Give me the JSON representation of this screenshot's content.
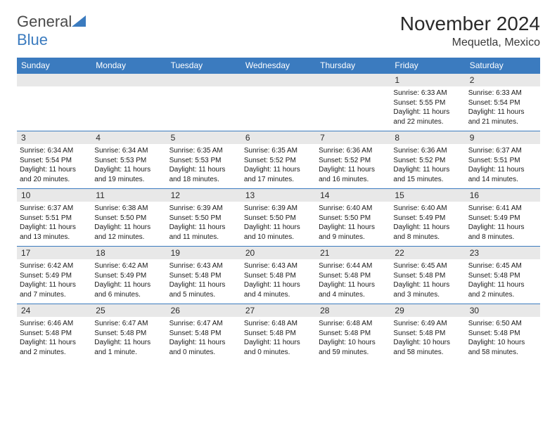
{
  "logo": {
    "first": "General",
    "second": "Blue"
  },
  "header": {
    "month": "November 2024",
    "location": "Mequetla, Mexico"
  },
  "colors": {
    "accent": "#3b7bbf",
    "header_bg": "#3b7bbf",
    "daynum_bg": "#e8e8e8",
    "text": "#1a1a1a",
    "border": "#3b7bbf"
  },
  "weekday_labels": [
    "Sunday",
    "Monday",
    "Tuesday",
    "Wednesday",
    "Thursday",
    "Friday",
    "Saturday"
  ],
  "weeks": [
    [
      null,
      null,
      null,
      null,
      null,
      {
        "n": "1",
        "sr": "Sunrise: 6:33 AM",
        "ss": "Sunset: 5:55 PM",
        "dl": "Daylight: 11 hours and 22 minutes."
      },
      {
        "n": "2",
        "sr": "Sunrise: 6:33 AM",
        "ss": "Sunset: 5:54 PM",
        "dl": "Daylight: 11 hours and 21 minutes."
      }
    ],
    [
      {
        "n": "3",
        "sr": "Sunrise: 6:34 AM",
        "ss": "Sunset: 5:54 PM",
        "dl": "Daylight: 11 hours and 20 minutes."
      },
      {
        "n": "4",
        "sr": "Sunrise: 6:34 AM",
        "ss": "Sunset: 5:53 PM",
        "dl": "Daylight: 11 hours and 19 minutes."
      },
      {
        "n": "5",
        "sr": "Sunrise: 6:35 AM",
        "ss": "Sunset: 5:53 PM",
        "dl": "Daylight: 11 hours and 18 minutes."
      },
      {
        "n": "6",
        "sr": "Sunrise: 6:35 AM",
        "ss": "Sunset: 5:52 PM",
        "dl": "Daylight: 11 hours and 17 minutes."
      },
      {
        "n": "7",
        "sr": "Sunrise: 6:36 AM",
        "ss": "Sunset: 5:52 PM",
        "dl": "Daylight: 11 hours and 16 minutes."
      },
      {
        "n": "8",
        "sr": "Sunrise: 6:36 AM",
        "ss": "Sunset: 5:52 PM",
        "dl": "Daylight: 11 hours and 15 minutes."
      },
      {
        "n": "9",
        "sr": "Sunrise: 6:37 AM",
        "ss": "Sunset: 5:51 PM",
        "dl": "Daylight: 11 hours and 14 minutes."
      }
    ],
    [
      {
        "n": "10",
        "sr": "Sunrise: 6:37 AM",
        "ss": "Sunset: 5:51 PM",
        "dl": "Daylight: 11 hours and 13 minutes."
      },
      {
        "n": "11",
        "sr": "Sunrise: 6:38 AM",
        "ss": "Sunset: 5:50 PM",
        "dl": "Daylight: 11 hours and 12 minutes."
      },
      {
        "n": "12",
        "sr": "Sunrise: 6:39 AM",
        "ss": "Sunset: 5:50 PM",
        "dl": "Daylight: 11 hours and 11 minutes."
      },
      {
        "n": "13",
        "sr": "Sunrise: 6:39 AM",
        "ss": "Sunset: 5:50 PM",
        "dl": "Daylight: 11 hours and 10 minutes."
      },
      {
        "n": "14",
        "sr": "Sunrise: 6:40 AM",
        "ss": "Sunset: 5:50 PM",
        "dl": "Daylight: 11 hours and 9 minutes."
      },
      {
        "n": "15",
        "sr": "Sunrise: 6:40 AM",
        "ss": "Sunset: 5:49 PM",
        "dl": "Daylight: 11 hours and 8 minutes."
      },
      {
        "n": "16",
        "sr": "Sunrise: 6:41 AM",
        "ss": "Sunset: 5:49 PM",
        "dl": "Daylight: 11 hours and 8 minutes."
      }
    ],
    [
      {
        "n": "17",
        "sr": "Sunrise: 6:42 AM",
        "ss": "Sunset: 5:49 PM",
        "dl": "Daylight: 11 hours and 7 minutes."
      },
      {
        "n": "18",
        "sr": "Sunrise: 6:42 AM",
        "ss": "Sunset: 5:49 PM",
        "dl": "Daylight: 11 hours and 6 minutes."
      },
      {
        "n": "19",
        "sr": "Sunrise: 6:43 AM",
        "ss": "Sunset: 5:48 PM",
        "dl": "Daylight: 11 hours and 5 minutes."
      },
      {
        "n": "20",
        "sr": "Sunrise: 6:43 AM",
        "ss": "Sunset: 5:48 PM",
        "dl": "Daylight: 11 hours and 4 minutes."
      },
      {
        "n": "21",
        "sr": "Sunrise: 6:44 AM",
        "ss": "Sunset: 5:48 PM",
        "dl": "Daylight: 11 hours and 4 minutes."
      },
      {
        "n": "22",
        "sr": "Sunrise: 6:45 AM",
        "ss": "Sunset: 5:48 PM",
        "dl": "Daylight: 11 hours and 3 minutes."
      },
      {
        "n": "23",
        "sr": "Sunrise: 6:45 AM",
        "ss": "Sunset: 5:48 PM",
        "dl": "Daylight: 11 hours and 2 minutes."
      }
    ],
    [
      {
        "n": "24",
        "sr": "Sunrise: 6:46 AM",
        "ss": "Sunset: 5:48 PM",
        "dl": "Daylight: 11 hours and 2 minutes."
      },
      {
        "n": "25",
        "sr": "Sunrise: 6:47 AM",
        "ss": "Sunset: 5:48 PM",
        "dl": "Daylight: 11 hours and 1 minute."
      },
      {
        "n": "26",
        "sr": "Sunrise: 6:47 AM",
        "ss": "Sunset: 5:48 PM",
        "dl": "Daylight: 11 hours and 0 minutes."
      },
      {
        "n": "27",
        "sr": "Sunrise: 6:48 AM",
        "ss": "Sunset: 5:48 PM",
        "dl": "Daylight: 11 hours and 0 minutes."
      },
      {
        "n": "28",
        "sr": "Sunrise: 6:48 AM",
        "ss": "Sunset: 5:48 PM",
        "dl": "Daylight: 10 hours and 59 minutes."
      },
      {
        "n": "29",
        "sr": "Sunrise: 6:49 AM",
        "ss": "Sunset: 5:48 PM",
        "dl": "Daylight: 10 hours and 58 minutes."
      },
      {
        "n": "30",
        "sr": "Sunrise: 6:50 AM",
        "ss": "Sunset: 5:48 PM",
        "dl": "Daylight: 10 hours and 58 minutes."
      }
    ]
  ]
}
